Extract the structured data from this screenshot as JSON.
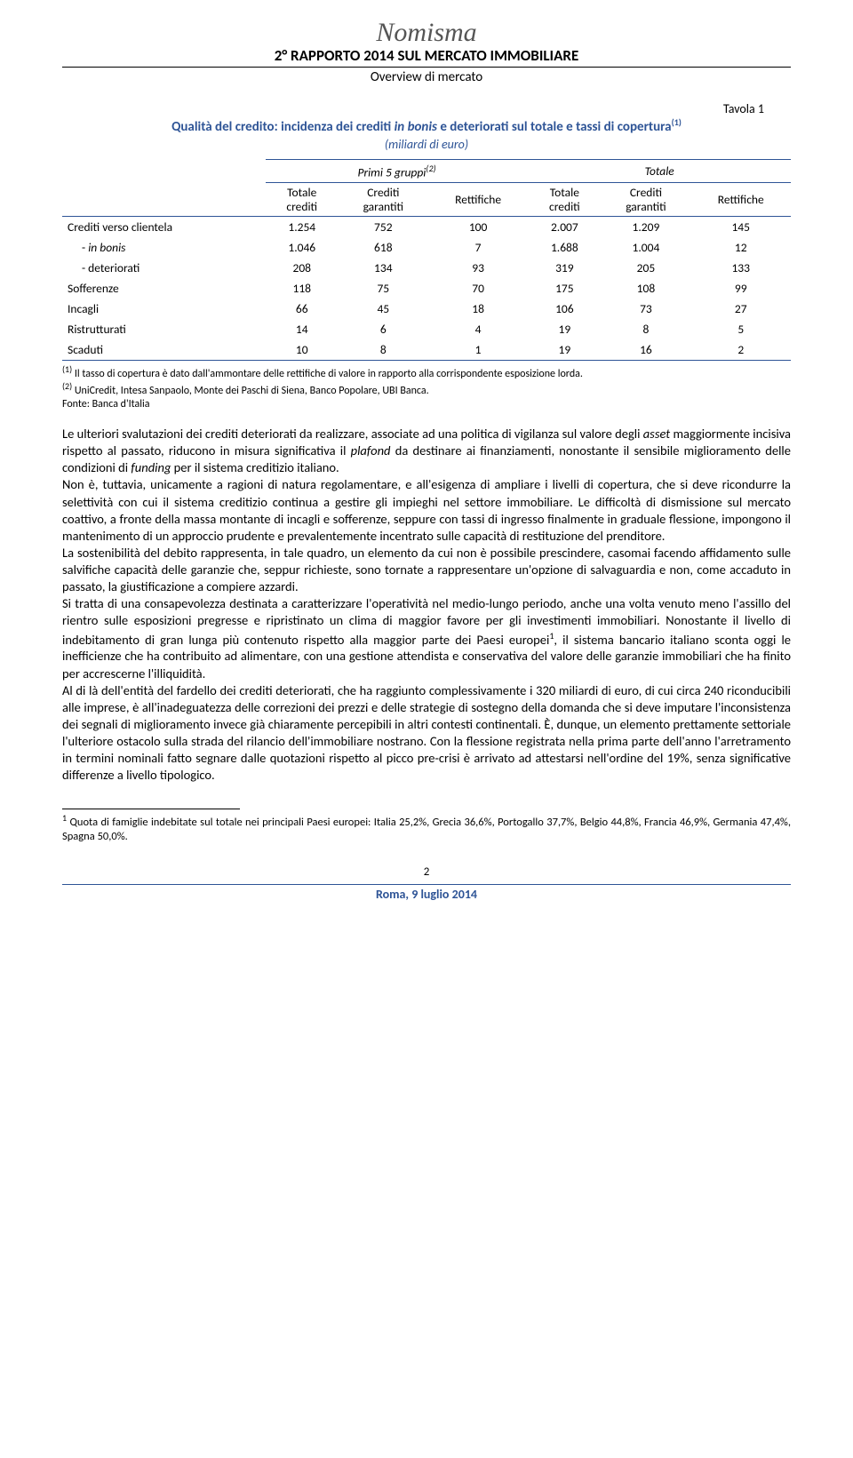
{
  "brand": "Nomisma",
  "header": {
    "report_title": "2° RAPPORTO 2014 SUL MERCATO IMMOBILIARE",
    "subtitle": "Overview di mercato"
  },
  "tavola_label": "Tavola 1",
  "table": {
    "title_line1": "Qualità del credito: incidenza dei crediti ",
    "title_italic1": "in bonis",
    "title_line2": " e deteriorati sul totale e tassi di copertura",
    "title_sup": "(1)",
    "subcaption": "(miliardi di euro)",
    "group1": "Primi 5 gruppi",
    "group1_sup": "(2)",
    "group2": "Totale",
    "col_labels": {
      "totale_crediti": "Totale\ncrediti",
      "crediti_garantiti": "Crediti\ngarantiti",
      "rettifiche": "Rettifiche"
    },
    "rows": [
      {
        "label": "Crediti verso clientela",
        "v1": "1.254",
        "v2": "752",
        "v3": "100",
        "v4": "2.007",
        "v5": "1.209",
        "v6": "145",
        "indent": false
      },
      {
        "label": "- in bonis",
        "v1": "1.046",
        "v2": "618",
        "v3": "7",
        "v4": "1.688",
        "v5": "1.004",
        "v6": "12",
        "indent": true,
        "italic_label": true
      },
      {
        "label": "- deteriorati",
        "v1": "208",
        "v2": "134",
        "v3": "93",
        "v4": "319",
        "v5": "205",
        "v6": "133",
        "indent": true
      },
      {
        "label": "Sofferenze",
        "v1": "118",
        "v2": "75",
        "v3": "70",
        "v4": "175",
        "v5": "108",
        "v6": "99",
        "indent": false
      },
      {
        "label": "Incagli",
        "v1": "66",
        "v2": "45",
        "v3": "18",
        "v4": "106",
        "v5": "73",
        "v6": "27",
        "indent": false
      },
      {
        "label": "Ristrutturati",
        "v1": "14",
        "v2": "6",
        "v3": "4",
        "v4": "19",
        "v5": "8",
        "v6": "5",
        "indent": false
      },
      {
        "label": "Scaduti",
        "v1": "10",
        "v2": "8",
        "v3": "1",
        "v4": "19",
        "v5": "16",
        "v6": "2",
        "indent": false
      }
    ],
    "note1_sup": "(1)",
    "note1": " Il tasso di copertura è dato dall'ammontare delle rettifiche di valore in rapporto alla corrispondente esposizione lorda.",
    "note2_sup": "(2)",
    "note2": " UniCredit, Intesa Sanpaolo, Monte dei Paschi di Siena, Banco Popolare, UBI Banca.",
    "source": "Fonte: Banca d'Italia"
  },
  "body": {
    "p1a": "Le ulteriori svalutazioni dei crediti deteriorati da realizzare, associate ad una politica di vigilanza sul valore degli ",
    "p1_it1": "asset",
    "p1b": " maggiormente incisiva rispetto al passato, riducono in misura significativa il ",
    "p1_it2": "plafond",
    "p1c": " da destinare ai finanziamenti, nonostante il sensibile miglioramento delle condizioni di ",
    "p1_it3": "funding",
    "p1d": " per il sistema creditizio italiano.",
    "p2": "Non è, tuttavia, unicamente a ragioni di natura regolamentare, e all'esigenza di ampliare i livelli di copertura, che si deve ricondurre la selettività con cui il sistema creditizio continua a gestire gli impieghi nel settore immobiliare. Le difficoltà di dismissione sul mercato coattivo, a fronte della massa montante di incagli e sofferenze, seppure con tassi di ingresso finalmente in graduale flessione, impongono il mantenimento di un approccio prudente e prevalentemente incentrato sulle capacità di restituzione del prenditore.",
    "p3": "La sostenibilità del debito rappresenta, in tale quadro, un elemento da cui non è possibile prescindere, casomai facendo affidamento sulle salvifiche capacità delle garanzie che, seppur richieste, sono tornate a rappresentare un'opzione di salvaguardia e non, come accaduto in passato, la giustificazione a compiere azzardi.",
    "p4a": "Si tratta di una consapevolezza destinata a caratterizzare l'operatività nel medio-lungo periodo, anche una volta venuto meno l'assillo del rientro sulle esposizioni pregresse e ripristinato un clima di maggior favore per gli investimenti immobiliari. Nonostante il livello di indebitamento di gran lunga più contenuto rispetto alla maggior parte dei Paesi europei",
    "p4_sup": "1",
    "p4b": ", il sistema bancario italiano sconta oggi le inefficienze che ha contribuito ad alimentare, con una gestione attendista e conservativa del valore delle garanzie immobiliari che ha finito per accrescerne l'illiquidità.",
    "p5": "Al di là dell'entità del fardello dei crediti deteriorati, che ha raggiunto complessivamente i 320 miliardi di euro, di cui circa 240 riconducibili alle imprese, è all'inadeguatezza delle correzioni dei prezzi e delle strategie di sostegno della domanda che si deve imputare l'inconsistenza dei segnali di miglioramento invece già chiaramente percepibili in altri contesti continentali. È, dunque, un elemento prettamente settoriale l'ulteriore ostacolo sulla strada del rilancio dell'immobiliare nostrano. Con la flessione registrata nella prima parte dell'anno l'arretramento in termini nominali fatto segnare dalle quotazioni rispetto al picco pre-crisi è arrivato ad attestarsi nell'ordine del 19%, senza significative differenze a livello tipologico."
  },
  "footnote": {
    "sup": "1",
    "text": " Quota di famiglie indebitate sul totale nei principali Paesi europei: Italia 25,2%, Grecia 36,6%, Portogallo 37,7%, Belgio 44,8%, Francia 46,9%, Germania 47,4%, Spagna 50,0%."
  },
  "page_number": "2",
  "footer_date": "Roma, 9 luglio 2014"
}
